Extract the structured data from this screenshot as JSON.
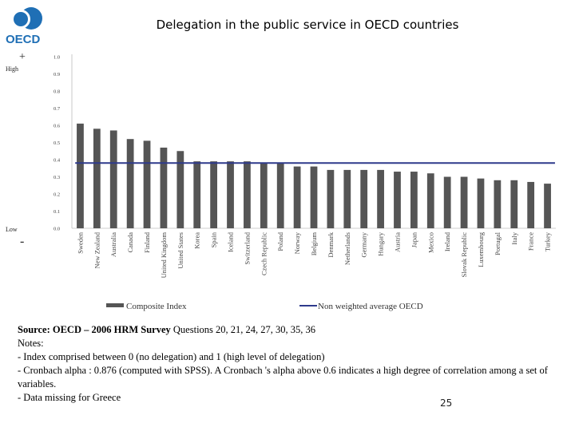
{
  "logo": {
    "text": "OECD",
    "color": "#1f6fb5"
  },
  "header": {
    "title": "Delegation in the public service in OECD countries"
  },
  "side_labels": {
    "plus": "+",
    "high": "High",
    "low": "Low",
    "minus": "-"
  },
  "chart_data": {
    "type": "bar",
    "title": "Delegation in the public service in OECD countries",
    "categories": [
      "Sweden",
      "New Zealand",
      "Australia",
      "Canada",
      "Finland",
      "United Kingdom",
      "United States",
      "Korea",
      "Spain",
      "Iceland",
      "Switzerland",
      "Czech Republic",
      "Poland",
      "Norway",
      "Belgium",
      "Denmark",
      "Netherlands",
      "Germany",
      "Hungary",
      "Austria",
      "Japan",
      "Mexico",
      "Ireland",
      "Slovak Republic",
      "Luxembourg",
      "Portugal",
      "Italy",
      "France",
      "Turkey"
    ],
    "series": [
      {
        "name": "Composite Index",
        "type": "bar",
        "color": "#555555",
        "values": [
          0.61,
          0.58,
          0.57,
          0.52,
          0.51,
          0.47,
          0.45,
          0.39,
          0.39,
          0.39,
          0.39,
          0.38,
          0.38,
          0.36,
          0.36,
          0.34,
          0.34,
          0.34,
          0.34,
          0.33,
          0.33,
          0.32,
          0.3,
          0.3,
          0.29,
          0.28,
          0.28,
          0.27,
          0.26
        ]
      },
      {
        "name": "Non weighted average OECD",
        "type": "line",
        "color": "#2e3a8c",
        "value": 0.38
      }
    ],
    "yticks": [
      "0.0",
      "0.1",
      "0.2",
      "0.3",
      "0.4",
      "0.5",
      "0.6",
      "0.7",
      "0.8",
      "0.9",
      "1.0"
    ],
    "ylim": [
      0,
      1
    ],
    "legend": "bottom",
    "grid": false
  },
  "notes": {
    "source_bold": "Source: OECD – 2006 HRM Survey",
    "source_rest": " Questions 20, 21, 24, 27, 30, 35, 36",
    "lines": [
      "Notes:",
      "- Index comprised between 0 (no delegation) and 1 (high level of delegation)",
      "- Cronbach alpha : 0.876 (computed with SPSS). A Cronbach 's alpha above 0.6  indicates a high degree of correlation among a set of variables.",
      "- Data missing for Greece"
    ]
  },
  "page_number": "25"
}
